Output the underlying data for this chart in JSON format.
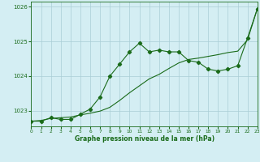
{
  "title": "Graphe pression niveau de la mer (hPa)",
  "bg_color": "#d4eef3",
  "grid_color": "#aacdd6",
  "line_color": "#1a6b1a",
  "xlim": [
    0,
    23
  ],
  "ylim": [
    1022.55,
    1026.15
  ],
  "yticks": [
    1023,
    1024,
    1025,
    1026
  ],
  "xticks": [
    0,
    1,
    2,
    3,
    4,
    5,
    6,
    7,
    8,
    9,
    10,
    11,
    12,
    13,
    14,
    15,
    16,
    17,
    18,
    19,
    20,
    21,
    22,
    23
  ],
  "series1": [
    [
      0,
      1022.7
    ],
    [
      1,
      1022.7
    ],
    [
      2,
      1022.8
    ],
    [
      3,
      1022.75
    ],
    [
      4,
      1022.75
    ],
    [
      5,
      1022.9
    ],
    [
      6,
      1023.05
    ],
    [
      7,
      1023.4
    ],
    [
      8,
      1024.0
    ],
    [
      9,
      1024.35
    ],
    [
      10,
      1024.7
    ],
    [
      11,
      1024.95
    ],
    [
      12,
      1024.7
    ],
    [
      13,
      1024.75
    ],
    [
      14,
      1024.7
    ],
    [
      15,
      1024.7
    ],
    [
      16,
      1024.45
    ],
    [
      17,
      1024.4
    ],
    [
      18,
      1024.2
    ],
    [
      19,
      1024.15
    ],
    [
      20,
      1024.2
    ],
    [
      21,
      1024.3
    ],
    [
      22,
      1025.1
    ],
    [
      23,
      1025.95
    ]
  ],
  "series2": [
    [
      0,
      1022.7
    ],
    [
      1,
      1022.72
    ],
    [
      2,
      1022.78
    ],
    [
      3,
      1022.8
    ],
    [
      4,
      1022.82
    ],
    [
      5,
      1022.88
    ],
    [
      6,
      1022.93
    ],
    [
      7,
      1022.99
    ],
    [
      8,
      1023.1
    ],
    [
      9,
      1023.3
    ],
    [
      10,
      1023.52
    ],
    [
      11,
      1023.72
    ],
    [
      12,
      1023.92
    ],
    [
      13,
      1024.05
    ],
    [
      14,
      1024.22
    ],
    [
      15,
      1024.38
    ],
    [
      16,
      1024.48
    ],
    [
      17,
      1024.52
    ],
    [
      18,
      1024.57
    ],
    [
      19,
      1024.62
    ],
    [
      20,
      1024.68
    ],
    [
      21,
      1024.72
    ],
    [
      22,
      1025.05
    ],
    [
      23,
      1025.95
    ]
  ]
}
